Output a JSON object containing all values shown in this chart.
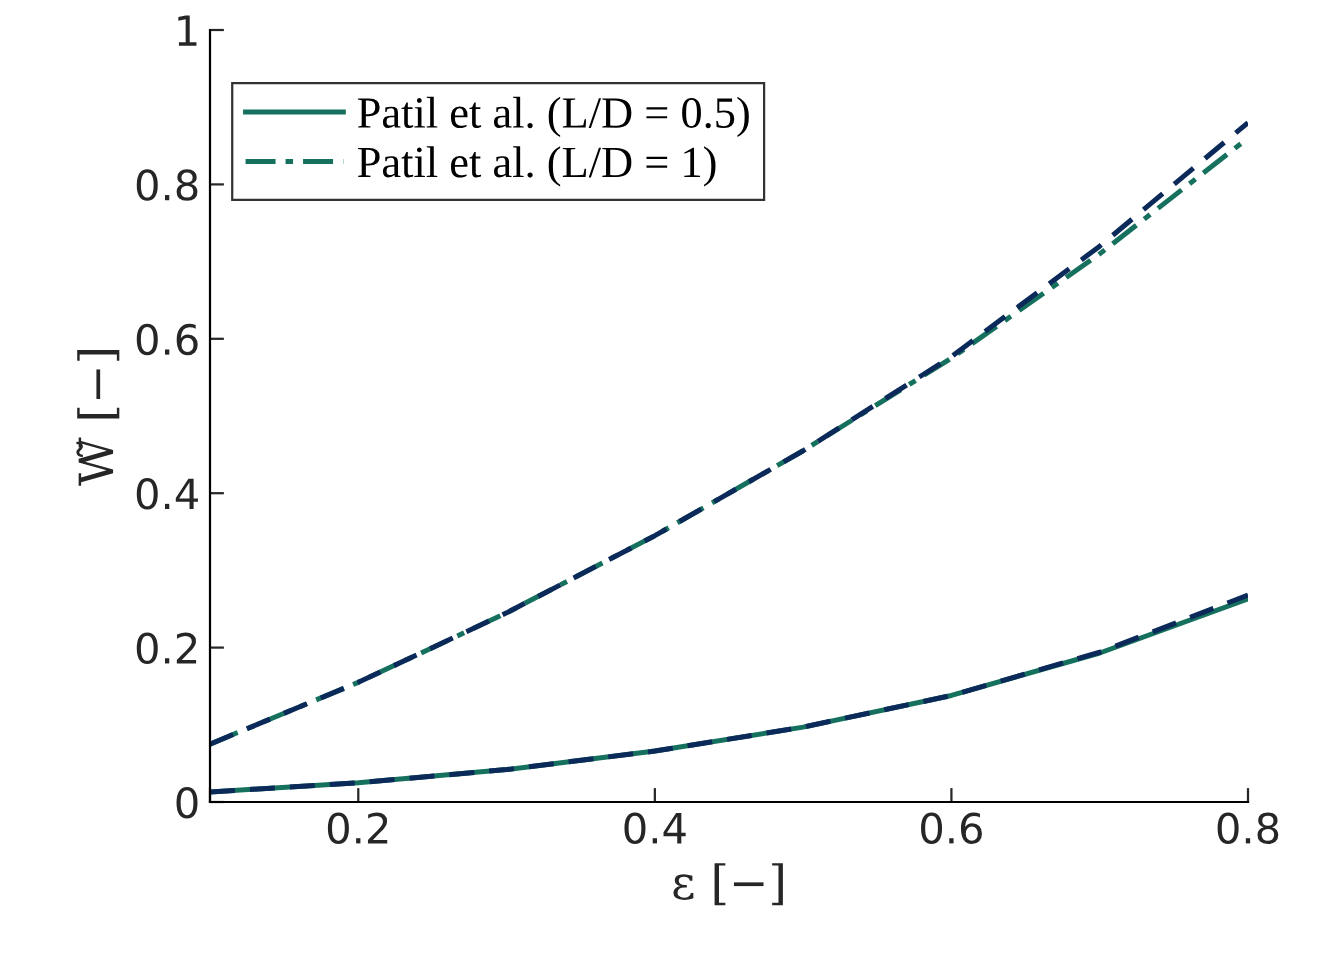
{
  "chart_data": {
    "type": "line",
    "xlabel": "ε [−]",
    "ylabel": "W̃ [−]",
    "x": [
      0.1,
      0.2,
      0.3,
      0.4,
      0.5,
      0.6,
      0.7,
      0.8
    ],
    "series": [
      {
        "name": "Patil et al. (L/D = 0.5)",
        "color": "#16705e",
        "line_style": "solid",
        "values": [
          0.013,
          0.025,
          0.042,
          0.066,
          0.097,
          0.138,
          0.193,
          0.263
        ]
      },
      {
        "name": "Patil et al. (L/D = 1)",
        "color": "#16705e",
        "line_style": "dashdot",
        "values": [
          0.075,
          0.155,
          0.245,
          0.345,
          0.455,
          0.575,
          0.71,
          0.86
        ]
      },
      {
        "color": "#0b2a5a",
        "line_style": "dashed",
        "values": [
          0.013,
          0.025,
          0.042,
          0.066,
          0.097,
          0.138,
          0.194,
          0.268
        ]
      },
      {
        "color": "#0b2a5a",
        "line_style": "dashed",
        "values": [
          0.075,
          0.155,
          0.245,
          0.345,
          0.455,
          0.577,
          0.72,
          0.88
        ]
      }
    ],
    "xlim": [
      0.1,
      0.8
    ],
    "xticks": [
      {
        "value": 0.1,
        "label": null
      },
      0.2,
      0.4,
      0.6,
      0.8
    ],
    "ylim": [
      0,
      1
    ],
    "yticks": [
      0,
      0.2,
      0.4,
      0.6,
      0.8,
      1
    ],
    "grid": false,
    "legend": "top left",
    "marker": "none"
  }
}
